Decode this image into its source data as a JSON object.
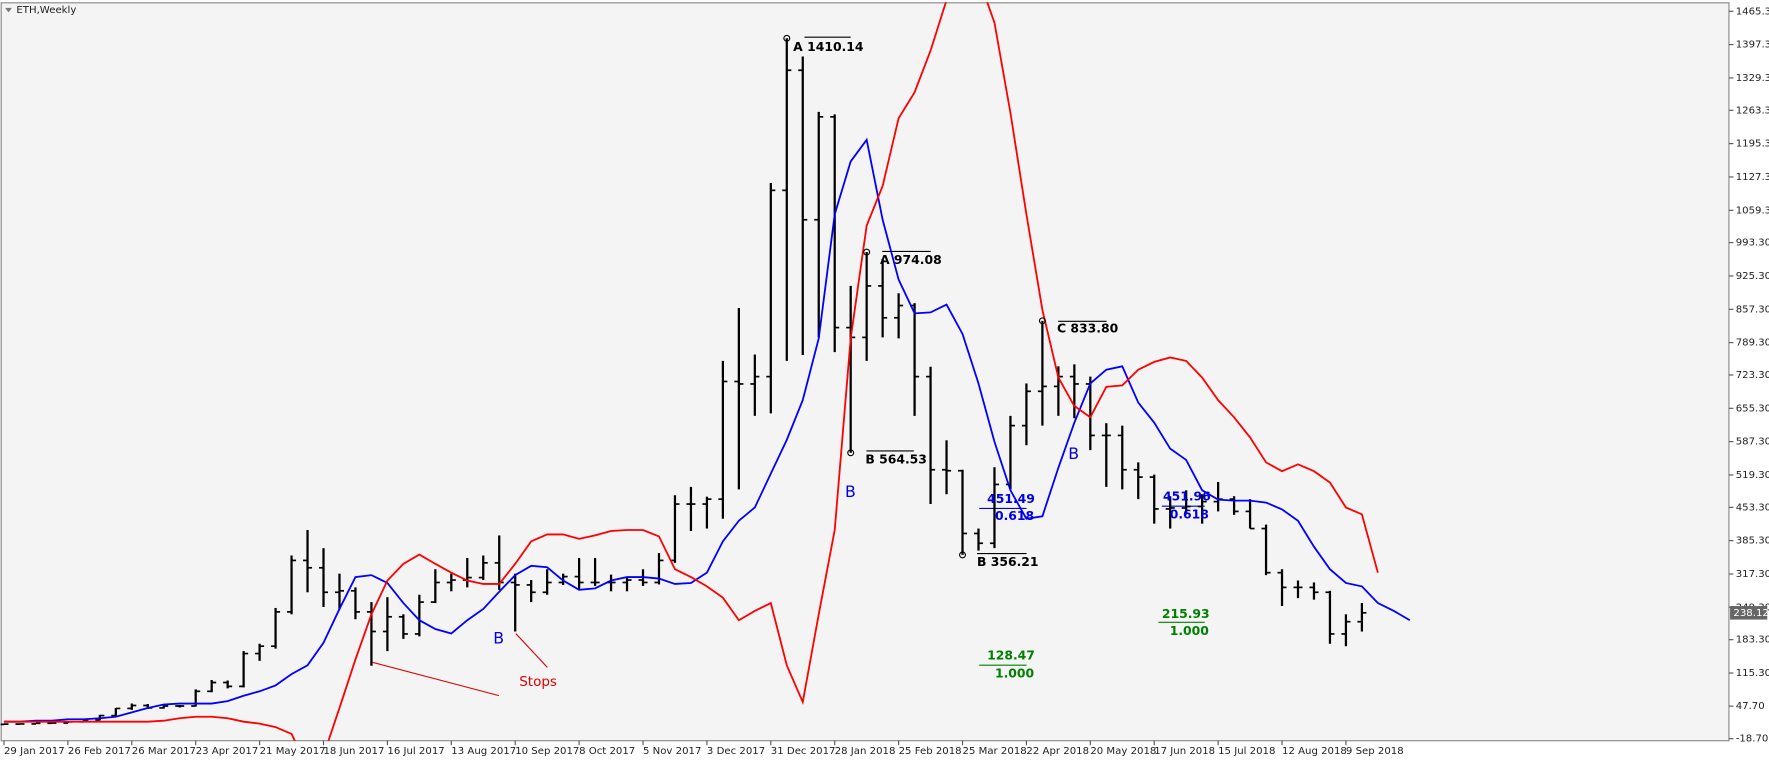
{
  "chart_data": {
    "type": "ohlc",
    "title": "ETH,Weekly",
    "categories": [
      "29 Jan 2017",
      null,
      null,
      null,
      "26 Feb 2017",
      null,
      null,
      null,
      "26 Mar 2017",
      null,
      null,
      null,
      "23 Apr 2017",
      null,
      null,
      null,
      "21 May 2017",
      null,
      null,
      null,
      "18 Jun 2017",
      null,
      null,
      null,
      "16 Jul 2017",
      null,
      null,
      null,
      "13 Aug 2017",
      null,
      null,
      null,
      "10 Sep 2017",
      null,
      null,
      null,
      "8 Oct 2017",
      null,
      null,
      null,
      "5 Nov 2017",
      null,
      null,
      null,
      "3 Dec 2017",
      null,
      null,
      null,
      "31 Dec 2017",
      null,
      null,
      null,
      "28 Jan 2018",
      null,
      null,
      null,
      "25 Feb 2018",
      null,
      null,
      null,
      "25 Mar 2018",
      null,
      null,
      null,
      "22 Apr 2018",
      null,
      null,
      null,
      "20 May 2018",
      null,
      null,
      null,
      "17 Jun 2018",
      null,
      null,
      null,
      "15 Jul 2018",
      null,
      null,
      null,
      "12 Aug 2018",
      null,
      null,
      null,
      "9 Sep 2018",
      null,
      null,
      null,
      null
    ],
    "open": [
      10.5,
      11,
      11.4,
      12.7,
      13.2,
      15.7,
      19.5,
      28.5,
      43,
      49,
      44,
      48,
      48,
      78,
      96,
      88,
      155,
      170,
      240,
      345,
      330,
      280,
      283,
      240,
      200,
      230,
      195,
      260,
      300,
      305,
      310,
      340,
      300,
      295,
      280,
      300,
      312,
      300,
      300,
      300,
      305,
      300,
      345,
      460,
      460,
      470,
      710,
      705,
      720,
      1100,
      1345,
      1040,
      1250,
      820,
      800,
      905,
      840,
      865,
      720,
      530,
      528,
      400,
      380,
      500,
      620,
      690,
      700,
      720,
      705,
      600,
      600,
      530,
      515,
      450,
      452,
      455,
      465,
      470,
      445,
      410,
      320,
      290,
      290,
      280,
      195,
      220,
      null,
      null,
      null
    ],
    "high": [
      11.5,
      11.8,
      13,
      13.6,
      16,
      20,
      30,
      44,
      53,
      52,
      50,
      50,
      82,
      101,
      100,
      160,
      175,
      248,
      355,
      407,
      370,
      318,
      290,
      260,
      270,
      235,
      275,
      327,
      318,
      350,
      355,
      396,
      318,
      305,
      327,
      318,
      350,
      350,
      316,
      311,
      327,
      360,
      478,
      495,
      475,
      752,
      860,
      765,
      1115,
      1410.14,
      1373,
      1260,
      1255,
      905,
      974.08,
      960,
      890,
      870,
      740,
      590,
      530,
      410,
      535,
      640,
      706,
      833.8,
      741,
      745,
      720,
      625,
      620,
      545,
      520,
      476,
      488,
      480,
      505,
      476,
      470,
      418,
      327,
      304,
      300,
      283,
      235,
      258,
      null,
      null,
      null
    ],
    "low": [
      10.2,
      10.9,
      11.2,
      12.4,
      13,
      15.5,
      19,
      28,
      40,
      42,
      43,
      45,
      47,
      76,
      84,
      86,
      140,
      165,
      235,
      280,
      250,
      245,
      225,
      130,
      160,
      185,
      190,
      258,
      282,
      290,
      305,
      285,
      200,
      260,
      275,
      295,
      285,
      293,
      282,
      282,
      293,
      296,
      340,
      405,
      410,
      430,
      490,
      640,
      645,
      752,
      764,
      800,
      770,
      564.53,
      752,
      800,
      798,
      640,
      460,
      480,
      356.21,
      365,
      370,
      490,
      580,
      620,
      640,
      635,
      570,
      495,
      490,
      470,
      420,
      410,
      442,
      420,
      445,
      438,
      410,
      315,
      252,
      268,
      265,
      175,
      170,
      200,
      null,
      null,
      null
    ],
    "close": [
      11,
      11.4,
      12.7,
      13.2,
      15.7,
      19.5,
      28.5,
      43,
      49,
      44,
      48,
      48,
      78,
      96,
      88,
      155,
      170,
      240,
      345,
      330,
      280,
      283,
      240,
      200,
      230,
      195,
      260,
      300,
      305,
      310,
      340,
      300,
      295,
      280,
      300,
      312,
      300,
      300,
      300,
      305,
      300,
      345,
      460,
      460,
      470,
      710,
      705,
      720,
      1100,
      1345,
      1040,
      1250,
      820,
      800,
      905,
      840,
      865,
      720,
      530,
      528,
      400,
      380,
      500,
      620,
      690,
      700,
      720,
      705,
      600,
      600,
      530,
      515,
      450,
      452,
      455,
      465,
      470,
      445,
      410,
      320,
      290,
      290,
      280,
      195,
      220,
      238.12,
      null,
      null,
      null
    ],
    "bar_color": "#000000",
    "lines": [
      {
        "color": "#0000ff",
        "values": [
          16,
          16,
          18,
          18,
          21,
          21,
          23,
          26,
          35,
          44,
          51,
          53,
          53,
          53,
          58,
          69,
          78,
          90,
          113,
          131,
          177,
          246,
          311,
          315,
          299,
          258,
          223,
          205,
          196,
          223,
          246,
          281,
          315,
          334,
          331,
          304,
          285,
          288,
          304,
          311,
          311,
          308,
          297,
          299,
          320,
          384,
          426,
          453,
          522,
          591,
          672,
          798,
          1051,
          1159,
          1203,
          1040,
          918,
          849,
          851,
          867,
          807,
          706,
          587,
          488,
          430,
          435,
          534,
          626,
          706,
          734,
          741,
          667,
          626,
          573,
          550,
          488,
          469,
          467,
          467,
          463,
          449,
          426,
          373,
          327,
          299,
          292,
          258,
          242,
          223
        ]
      },
      {
        "color": "#ff0000",
        "values": [
          16,
          16,
          16,
          16,
          16,
          16,
          16,
          16,
          16,
          16,
          18,
          23,
          26,
          26,
          23,
          16,
          12,
          5,
          -9,
          -76,
          -53,
          44,
          143,
          235,
          304,
          338,
          357,
          338,
          320,
          304,
          297,
          297,
          338,
          384,
          398,
          398,
          389,
          396,
          405,
          407,
          407,
          394,
          327,
          311,
          292,
          269,
          223,
          242,
          258,
          131,
          56,
          235,
          407,
          798,
          1028,
          1109,
          1247,
          1300,
          1385,
          1488,
          1557,
          1534,
          1442,
          1258,
          1051,
          856,
          718,
          660,
          637,
          699,
          702,
          734,
          750,
          759,
          752,
          718,
          672,
          637,
          596,
          545,
          527,
          541,
          527,
          504,
          453,
          439,
          320,
          null,
          null
        ]
      }
    ],
    "last_price": 238.12,
    "ylim": [
      -22.8,
      1483.7
    ],
    "yticks": [
      {
        "value": 1465.3,
        "label": "1465.30"
      },
      {
        "value": 1397.3,
        "label": "1397.30"
      },
      {
        "value": 1329.3,
        "label": "1329.30"
      },
      {
        "value": 1263.3,
        "label": "1263.30"
      },
      {
        "value": 1195.3,
        "label": "1195.30"
      },
      {
        "value": 1127.3,
        "label": "1127.30"
      },
      {
        "value": 1059.3,
        "label": "1059.30"
      },
      {
        "value": 993.3,
        "label": "993.30"
      },
      {
        "value": 925.3,
        "label": "925.30"
      },
      {
        "value": 857.3,
        "label": "857.30"
      },
      {
        "value": 789.3,
        "label": "789.30"
      },
      {
        "value": 723.3,
        "label": "723.30"
      },
      {
        "value": 655.3,
        "label": "655.30"
      },
      {
        "value": 587.3,
        "label": "587.30"
      },
      {
        "value": 519.3,
        "label": "519.30"
      },
      {
        "value": 453.3,
        "label": "453.30"
      },
      {
        "value": 385.3,
        "label": "385.30"
      },
      {
        "value": 317.3,
        "label": "317.30"
      },
      {
        "value": 249.3,
        "label": "249.30"
      },
      {
        "value": 183.3,
        "label": "183.30"
      },
      {
        "value": 115.3,
        "label": "115.30"
      },
      {
        "value": 47.7,
        "label": "47.70"
      },
      {
        "value": -18.7,
        "label": "-18.70"
      }
    ],
    "grid": false,
    "annotations": [
      "A 1410.14",
      "A 974.08",
      "B 564.53",
      "B 356.21",
      "C 833.80",
      "B",
      "B",
      "B",
      "Stops",
      "451.49",
      "0.618",
      "451.96",
      "0.618",
      "215.93",
      "1.000",
      "128.47",
      "1.000"
    ]
  }
}
